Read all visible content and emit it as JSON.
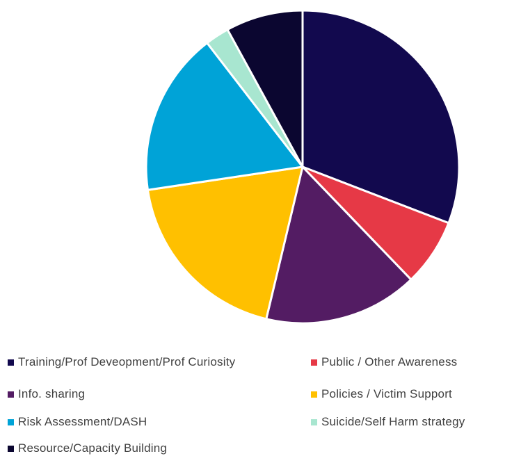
{
  "chart_data": {
    "type": "pie",
    "title": "",
    "series": [
      {
        "values": [
          31,
          7,
          16,
          19,
          17,
          2.5,
          8
        ],
        "categories": [
          "Training/Prof Deveopment/Prof Curiosity",
          "Public / Other Awareness",
          "Info. sharing",
          "Policies / Victim Support",
          "Risk Assessment/DASH",
          "Suicide/Self Harm strategy",
          "Resource/Capacity Building"
        ]
      }
    ],
    "colors": [
      "#12094e",
      "#e63946",
      "#531c63",
      "#ffc000",
      "#00a3d7",
      "#a8e6d0",
      "#0b0630"
    ],
    "start_angle_deg": 0,
    "direction": "clockwise",
    "legend_position": "bottom"
  },
  "legend": {
    "items": [
      "Training/Prof Deveopment/Prof Curiosity",
      "Public / Other Awareness",
      "Info. sharing",
      "Policies / Victim Support",
      "Risk Assessment/DASH",
      "Suicide/Self Harm strategy",
      "Resource/Capacity Building"
    ]
  }
}
